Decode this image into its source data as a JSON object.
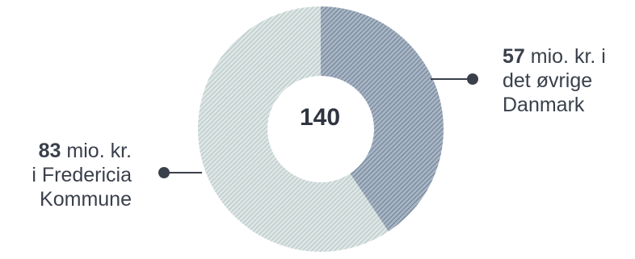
{
  "chart_data": {
    "type": "pie",
    "variant": "donut",
    "total": "140",
    "slices": [
      {
        "value": 57,
        "value_text": "57",
        "line1": "mio. kr. i",
        "line2": "det øvrige",
        "line3": "Danmark",
        "color": "#8e9eb0"
      },
      {
        "value": 83,
        "value_text": "83",
        "line1": "mio. kr.",
        "line2": "i Fredericia",
        "line3": "Kommune",
        "color": "#c5d2d1"
      }
    ],
    "legend": "none"
  }
}
